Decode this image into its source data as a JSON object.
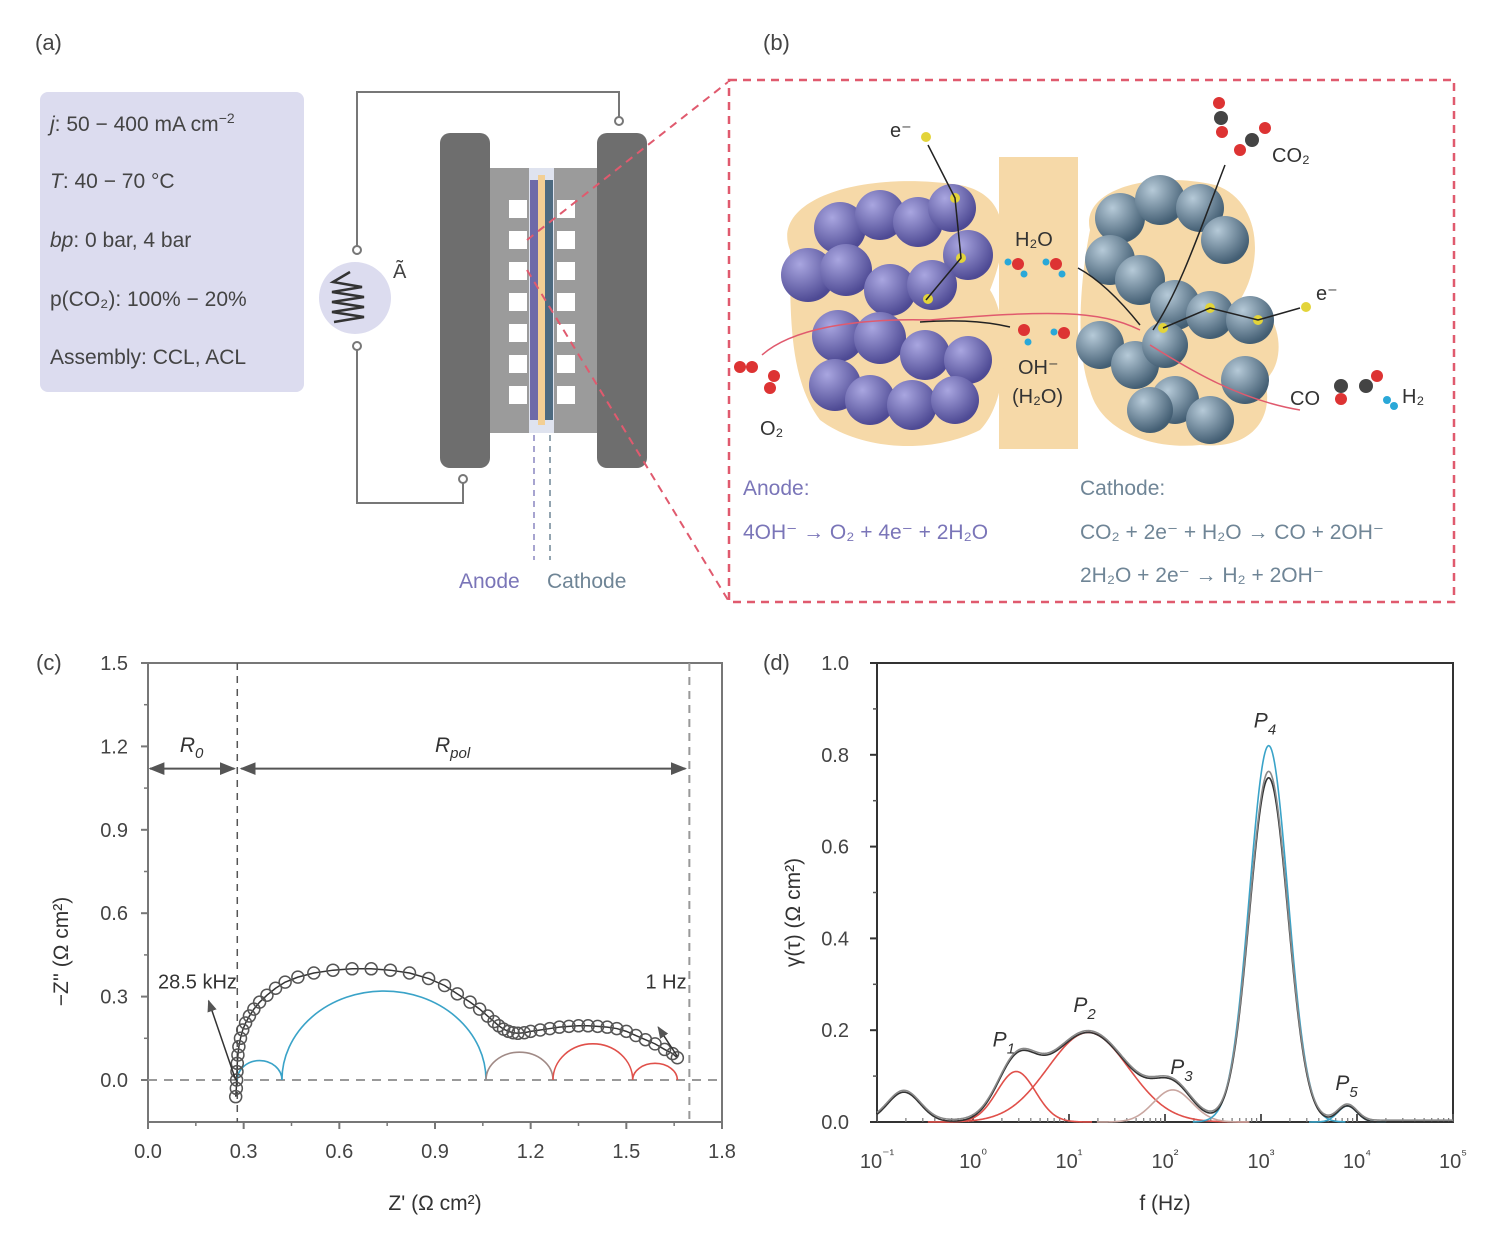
{
  "panels": {
    "a": {
      "label": "(a)",
      "conditions": [
        {
          "key": "j",
          "text": ": 50 − 400 mA cm",
          "sup": "−2"
        },
        {
          "key": "T",
          "text": ": 40 − 70 °C",
          "sup": ""
        },
        {
          "key": "bp",
          "text": ": 0 bar, 4 bar",
          "sup": ""
        },
        {
          "key": "p(CO₂)",
          "text": ": 100% − 20%",
          "sup": ""
        },
        {
          "key": "Assembly",
          "text": ": CCL, ACL",
          "sup": ""
        }
      ],
      "source_label": "Ã",
      "electrode_labels": {
        "anode": "Anode",
        "cathode": "Cathode"
      },
      "colors": {
        "anode": "#6e6aa8",
        "cathode": "#4d6a80",
        "membrane": "#f3cf94",
        "plate": "#6e6e6e",
        "flowfield": "#9b9b9b",
        "box": "#dcdcef"
      }
    },
    "b": {
      "label": "(b)",
      "species": {
        "e_left": "e⁻",
        "e_right": "e⁻",
        "h2o_top": "H₂O",
        "oh": "OH⁻",
        "h2o_paren": "(H₂O)",
        "o2": "O₂",
        "co2": "CO₂",
        "co": "CO",
        "h2": "H₂"
      },
      "anode_title": "Anode:",
      "anode_reaction": "4OH⁻ → O₂ + 4e⁻ + 2H₂O",
      "cathode_title": "Cathode:",
      "cathode_reactions": [
        "CO₂ + 2e⁻ + H₂O → CO + 2OH⁻",
        "2H₂O + 2e⁻ → H₂ + 2OH⁻"
      ],
      "colors": {
        "anode_particle": "#6a66b0",
        "cathode_particle": "#5b7a90",
        "ionomer": "#f6d9a8",
        "border": "#e05a6e"
      }
    }
  },
  "chart_data": [
    {
      "panel": "(c)",
      "type": "scatter",
      "title": "",
      "xlabel": "Z' (Ω cm²)",
      "ylabel": "−Z'' (Ω cm²)",
      "xlim": [
        0.0,
        1.8
      ],
      "ylim": [
        -0.1,
        1.5
      ],
      "xticks": [
        "0.0",
        "0.3",
        "0.6",
        "0.9",
        "1.2",
        "1.5",
        "1.8"
      ],
      "yticks": [
        "0.0",
        "0.3",
        "0.6",
        "0.9",
        "1.2",
        "1.5"
      ],
      "grid": false,
      "annotations": {
        "r0": "R",
        "r0_sub": "0",
        "rpol": "R",
        "rpol_sub": "pol",
        "high_f": "28.5 kHz",
        "low_f": "1 Hz"
      },
      "r0_value": 0.28,
      "rpol_end": 1.66,
      "measured": {
        "name": "Measured",
        "x": [
          0.275,
          0.277,
          0.278,
          0.279,
          0.28,
          0.282,
          0.285,
          0.29,
          0.297,
          0.306,
          0.318,
          0.332,
          0.35,
          0.373,
          0.4,
          0.43,
          0.47,
          0.52,
          0.58,
          0.64,
          0.7,
          0.76,
          0.82,
          0.88,
          0.93,
          0.97,
          1.01,
          1.04,
          1.065,
          1.085,
          1.1,
          1.115,
          1.13,
          1.145,
          1.16,
          1.18,
          1.2,
          1.23,
          1.26,
          1.29,
          1.32,
          1.35,
          1.38,
          1.41,
          1.44,
          1.47,
          1.5,
          1.53,
          1.56,
          1.59,
          1.62,
          1.645,
          1.66
        ],
        "y": [
          -0.06,
          -0.03,
          0.0,
          0.03,
          0.06,
          0.09,
          0.12,
          0.15,
          0.18,
          0.205,
          0.23,
          0.255,
          0.28,
          0.305,
          0.33,
          0.352,
          0.37,
          0.385,
          0.395,
          0.4,
          0.4,
          0.395,
          0.385,
          0.365,
          0.34,
          0.31,
          0.28,
          0.255,
          0.23,
          0.21,
          0.195,
          0.183,
          0.175,
          0.17,
          0.168,
          0.17,
          0.175,
          0.18,
          0.185,
          0.19,
          0.193,
          0.195,
          0.195,
          0.193,
          0.19,
          0.185,
          0.175,
          0.16,
          0.145,
          0.13,
          0.11,
          0.095,
          0.08
        ]
      },
      "arcs": [
        {
          "name": "Arc 1",
          "color": "#3aa3c8",
          "x_start": 0.28,
          "x_end": 0.42,
          "height": 0.07
        },
        {
          "name": "Arc 2",
          "color": "#3aa3c8",
          "x_start": 0.42,
          "x_end": 1.06,
          "height": 0.32
        },
        {
          "name": "Arc 3",
          "color": "#a08a86",
          "x_start": 1.06,
          "x_end": 1.27,
          "height": 0.1
        },
        {
          "name": "Arc 4",
          "color": "#e0504a",
          "x_start": 1.27,
          "x_end": 1.52,
          "height": 0.13
        },
        {
          "name": "Arc 5",
          "color": "#e0504a",
          "x_start": 1.52,
          "x_end": 1.66,
          "height": 0.06
        }
      ]
    },
    {
      "panel": "(d)",
      "type": "line",
      "title": "",
      "xlabel": "f (Hz)",
      "ylabel": "γ(τ) (Ω cm²)",
      "xscale": "log",
      "xlim_log10": [
        -1,
        5
      ],
      "ylim": [
        0.0,
        1.0
      ],
      "xticks": [
        "10⁻¹",
        "10⁰",
        "10¹",
        "10²",
        "10³",
        "10⁴",
        "10⁵"
      ],
      "yticks": [
        "0.0",
        "0.2",
        "0.4",
        "0.6",
        "0.8",
        "1.0"
      ],
      "grid": false,
      "peaks": [
        {
          "label": "P",
          "sub": "1",
          "color": "#e0504a",
          "center_log10": 0.45,
          "height": 0.11,
          "width_log10": 0.2
        },
        {
          "label": "P",
          "sub": "2",
          "color": "#e0504a",
          "center_log10": 1.2,
          "height": 0.195,
          "width_log10": 0.42
        },
        {
          "label": "P",
          "sub": "3",
          "color": "#c9a6a0",
          "center_log10": 2.08,
          "height": 0.07,
          "width_log10": 0.2
        },
        {
          "label": "P",
          "sub": "4",
          "color": "#3aa3c8",
          "center_log10": 3.08,
          "height": 0.82,
          "width_log10": 0.2
        },
        {
          "label": "P",
          "sub": "5",
          "color": "#3aa3c8",
          "center_log10": 3.9,
          "height": 0.035,
          "width_log10": 0.1
        }
      ],
      "extra_peak": {
        "center_log10": -0.72,
        "height": 0.065,
        "width_log10": 0.17
      },
      "total_series": [
        {
          "name": "DRT measured 1",
          "color": "#333333",
          "p4_height": 0.75
        },
        {
          "name": "DRT measured 2",
          "color": "#888888",
          "p4_height": 0.76
        }
      ]
    }
  ]
}
